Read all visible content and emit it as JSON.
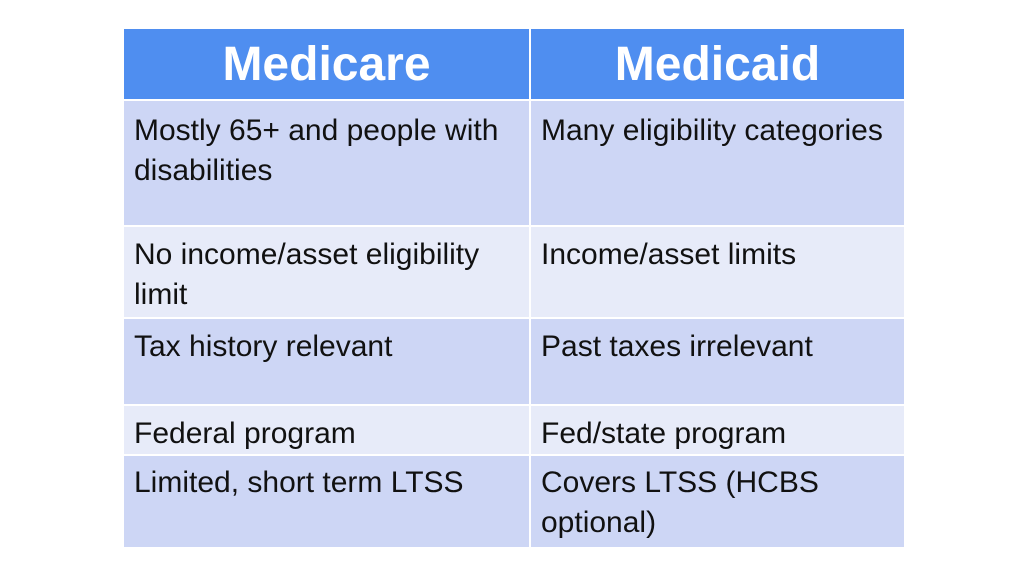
{
  "table": {
    "headers": [
      "Medicare",
      "Medicaid"
    ],
    "rows": [
      [
        "Mostly 65+ and people with disabilities",
        "Many eligibility categories"
      ],
      [
        "No income/asset eligibility limit",
        "Income/asset limits"
      ],
      [
        "Tax history relevant",
        "Past taxes irrelevant"
      ],
      [
        "Federal program",
        "Fed/state program"
      ],
      [
        "Limited, short term LTSS",
        "Covers LTSS (HCBS optional)"
      ]
    ]
  },
  "colors": {
    "header": "#4f8ef0",
    "row_dark": "#cdd6f5",
    "row_light": "#e7ebf9"
  }
}
